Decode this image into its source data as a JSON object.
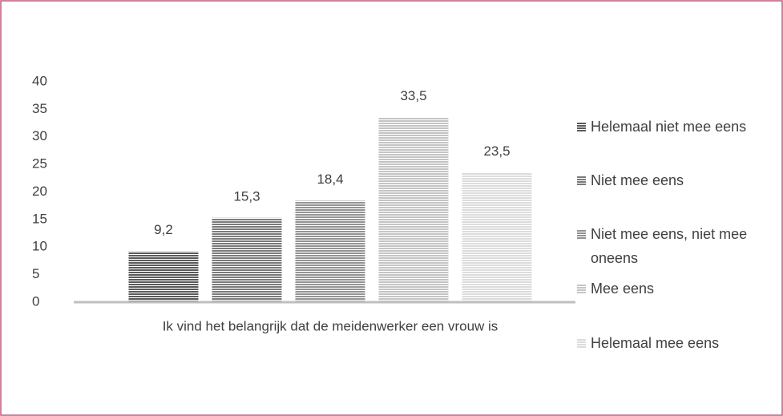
{
  "chart_data": {
    "type": "bar",
    "categories": [
      "Ik vind het belangrijk dat de meidenwerker een vrouw is"
    ],
    "series": [
      {
        "name": "Helemaal niet mee eens",
        "color": "#5a5a5a",
        "values": [
          9.2
        ],
        "value_labels": [
          "9,2"
        ]
      },
      {
        "name": "Niet mee eens",
        "color": "#7a7a7a",
        "values": [
          15.3
        ],
        "value_labels": [
          "15,3"
        ]
      },
      {
        "name": "Niet mee eens, niet mee oneens",
        "color": "#939393",
        "values": [
          18.4
        ],
        "value_labels": [
          "18,4"
        ]
      },
      {
        "name": "Mee eens",
        "color": "#c4c4c4",
        "values": [
          33.5
        ],
        "value_labels": [
          "33,5"
        ]
      },
      {
        "name": "Helemaal mee eens",
        "color": "#dcdcdc",
        "values": [
          23.5
        ],
        "value_labels": [
          "23,5"
        ]
      }
    ],
    "ylim": [
      0,
      40
    ],
    "yticks": [
      0,
      5,
      10,
      15,
      20,
      25,
      30,
      35,
      40
    ],
    "grid": false,
    "legend": "right"
  }
}
